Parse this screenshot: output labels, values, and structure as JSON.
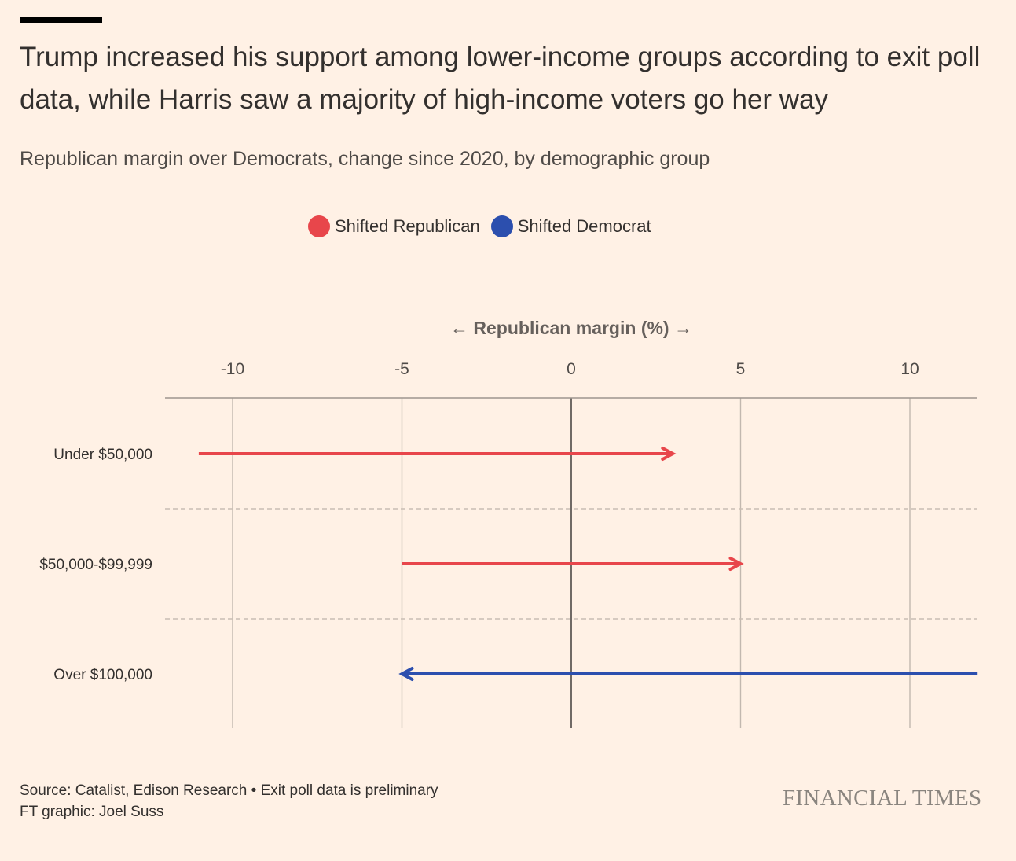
{
  "header": {
    "title": "Trump increased his support among lower-income groups according to exit poll data, while Harris saw a majority of high-income voters go her way",
    "subtitle": "Republican margin over Democrats, change since 2020, by demographic group"
  },
  "legend": {
    "items": [
      {
        "label": "Shifted Republican",
        "color": "#e8464b"
      },
      {
        "label": "Shifted Democrat",
        "color": "#2c4fae"
      }
    ]
  },
  "chart_data": {
    "type": "arrow",
    "title": "",
    "xlabel": "← Republican margin (%) →",
    "xlim": [
      -12,
      12
    ],
    "xticks": [
      -10,
      -5,
      0,
      5,
      10
    ],
    "xtick_labels": [
      "-10",
      "-5",
      "0",
      "5",
      "10"
    ],
    "grid": true,
    "categories": [
      "Under $50,000",
      "$50,000-$99,999",
      "Over $100,000"
    ],
    "series": [
      {
        "name": "Shifted Republican",
        "category": "Under $50,000",
        "from": -11,
        "to": 3,
        "color": "#e8464b"
      },
      {
        "name": "Shifted Republican",
        "category": "$50,000-$99,999",
        "from": -5,
        "to": 5,
        "color": "#e8464b"
      },
      {
        "name": "Shifted Democrat",
        "category": "Over $100,000",
        "from": 12,
        "to": -5,
        "color": "#2c4fae"
      }
    ]
  },
  "footer": {
    "source": "Source: Catalist, Edison Research • Exit poll data is preliminary",
    "credit": "FT graphic: Joel Suss",
    "logo": "FINANCIAL TIMES"
  }
}
